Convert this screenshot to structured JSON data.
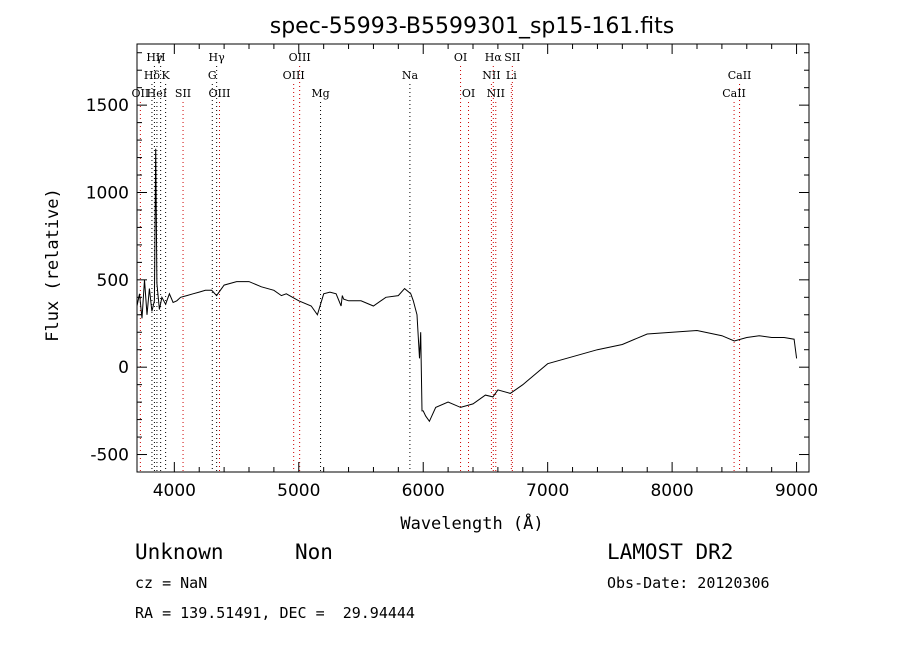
{
  "chart_data": {
    "type": "line",
    "title": "spec-55993-B5599301_sp15-161.fits",
    "xlabel": "Wavelength (Å)",
    "ylabel": "Flux (relative)",
    "xlim": [
      3700,
      9100
    ],
    "ylim": [
      -600,
      1850
    ],
    "xticks": [
      4000,
      5000,
      6000,
      7000,
      8000,
      9000
    ],
    "yticks": [
      -500,
      0,
      500,
      1000,
      1500
    ],
    "grid": false,
    "series": [
      {
        "x": [
          3700,
          3720,
          3740,
          3760,
          3780,
          3800,
          3820,
          3840,
          3850,
          3860,
          3880,
          3900,
          3930,
          3960,
          3990,
          4020,
          4050,
          4100,
          4150,
          4200,
          4250,
          4300,
          4340,
          4400,
          4500,
          4600,
          4700,
          4800,
          4860,
          4900,
          5000,
          5100,
          5150,
          5200,
          5250,
          5300,
          5340,
          5350,
          5360,
          5400,
          5500,
          5600,
          5700,
          5800,
          5850,
          5900,
          5920,
          5950,
          5970,
          5980,
          5990,
          6000,
          6020,
          6050,
          6100,
          6200,
          6300,
          6400,
          6500,
          6560,
          6600,
          6700,
          6800,
          6900,
          7000,
          7200,
          7400,
          7600,
          7800,
          8000,
          8200,
          8400,
          8500,
          8600,
          8700,
          8800,
          8900,
          8980,
          9000
        ],
        "y": [
          350,
          420,
          280,
          500,
          300,
          450,
          320,
          380,
          1250,
          480,
          330,
          400,
          360,
          420,
          370,
          380,
          400,
          410,
          420,
          430,
          440,
          440,
          410,
          470,
          490,
          490,
          460,
          440,
          410,
          420,
          380,
          350,
          300,
          420,
          430,
          420,
          350,
          410,
          390,
          380,
          380,
          350,
          400,
          410,
          450,
          420,
          380,
          300,
          50,
          200,
          -250,
          -250,
          -280,
          -310,
          -230,
          -200,
          -230,
          -210,
          -160,
          -170,
          -130,
          -150,
          -100,
          -40,
          20,
          60,
          100,
          130,
          190,
          200,
          210,
          180,
          150,
          170,
          180,
          170,
          170,
          160,
          50
        ]
      }
    ],
    "spectral_lines": [
      {
        "label": "Hγ",
        "x": 3840,
        "row": 1
      },
      {
        "label": "H",
        "x": 3890,
        "row": 1
      },
      {
        "label": "Hδ",
        "x": 3820,
        "row": 2
      },
      {
        "label": "K",
        "x": 3930,
        "row": 2
      },
      {
        "label": "OII",
        "x": 3727,
        "row": 3
      },
      {
        "label": "HeI",
        "x": 3860,
        "row": 3
      },
      {
        "label": "SII",
        "x": 4070,
        "row": 3
      },
      {
        "label": "Hγ",
        "x": 4340,
        "row": 1
      },
      {
        "label": "G",
        "x": 4305,
        "row": 2
      },
      {
        "label": "OIII",
        "x": 4363,
        "row": 3
      },
      {
        "label": "OIII",
        "x": 5007,
        "row": 1
      },
      {
        "label": "OIII",
        "x": 4959,
        "row": 2
      },
      {
        "label": "Mg",
        "x": 5175,
        "row": 3
      },
      {
        "label": "Na",
        "x": 5893,
        "row": 2
      },
      {
        "label": "OI",
        "x": 6300,
        "row": 1
      },
      {
        "label": "OI",
        "x": 6364,
        "row": 3
      },
      {
        "label": "Hα",
        "x": 6563,
        "row": 1
      },
      {
        "label": "SII",
        "x": 6716,
        "row": 1
      },
      {
        "label": "NII",
        "x": 6548,
        "row": 2
      },
      {
        "label": "Li",
        "x": 6708,
        "row": 2
      },
      {
        "label": "NII",
        "x": 6583,
        "row": 3
      },
      {
        "label": "CaII",
        "x": 8542,
        "row": 2
      },
      {
        "label": "CaII",
        "x": 8498,
        "row": 3
      }
    ],
    "colors": {
      "spectrum": "#000000",
      "emission_lines": "#cc0000",
      "absorption_lines": "#000000"
    }
  },
  "info": {
    "class": "Unknown",
    "subclass": "Non",
    "survey": "LAMOST DR2",
    "cz": "cz = NaN",
    "obs_date": "Obs-Date: 20120306",
    "coords": "RA = 139.51491, DEC =  29.94444"
  }
}
